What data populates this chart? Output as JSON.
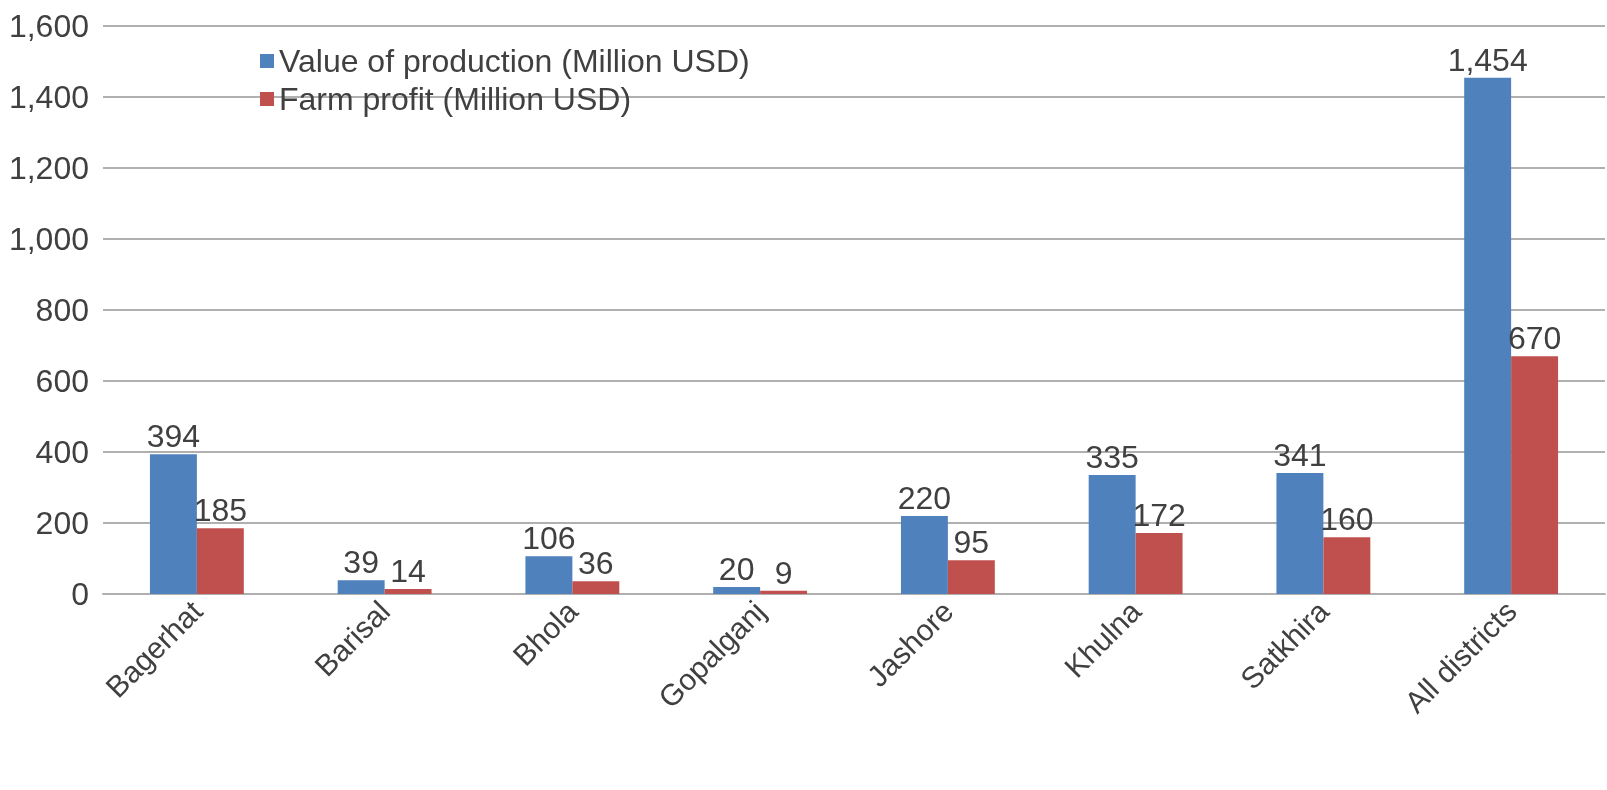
{
  "chart_data": {
    "type": "bar",
    "categories": [
      "Bagerhat",
      "Barisal",
      "Bhola",
      "Gopalganj",
      "Jashore",
      "Khulna",
      "Satkhira",
      "All districts"
    ],
    "series": [
      {
        "name": "Value of production (Million USD)",
        "color": "#4f81bd",
        "values": [
          394,
          39,
          106,
          20,
          220,
          335,
          341,
          1454
        ],
        "value_labels": [
          "394",
          "39",
          "106",
          "20",
          "220",
          "335",
          "341",
          "1,454"
        ]
      },
      {
        "name": "Farm profit (Million USD)",
        "color": "#c0504d",
        "values": [
          185,
          14,
          36,
          9,
          95,
          172,
          160,
          670
        ],
        "value_labels": [
          "185",
          "14",
          "36",
          "9",
          "95",
          "172",
          "160",
          "670"
        ]
      }
    ],
    "ylim": [
      0,
      1600
    ],
    "yticks": [
      {
        "value": 0,
        "label": "0"
      },
      {
        "value": 200,
        "label": "200"
      },
      {
        "value": 400,
        "label": "400"
      },
      {
        "value": 600,
        "label": "600"
      },
      {
        "value": 800,
        "label": "800"
      },
      {
        "value": 1000,
        "label": "1,000"
      },
      {
        "value": 1200,
        "label": "1,200"
      },
      {
        "value": 1400,
        "label": "1,400"
      },
      {
        "value": 1600,
        "label": "1,600"
      }
    ],
    "grid": "y",
    "legend": "top left"
  }
}
